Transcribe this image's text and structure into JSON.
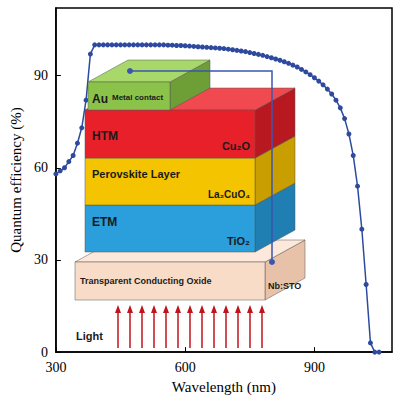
{
  "chart_data": {
    "type": "line",
    "x_label": "Wavelength (nm)",
    "y_label": "Quantum efficiency (%)",
    "x": [
      300,
      310,
      320,
      330,
      340,
      350,
      360,
      370,
      380,
      390,
      400,
      410,
      420,
      430,
      440,
      450,
      460,
      470,
      480,
      490,
      500,
      510,
      520,
      530,
      540,
      550,
      560,
      570,
      580,
      590,
      600,
      610,
      620,
      630,
      640,
      650,
      660,
      670,
      680,
      690,
      700,
      710,
      720,
      730,
      740,
      750,
      760,
      770,
      780,
      790,
      800,
      810,
      820,
      830,
      840,
      850,
      860,
      870,
      880,
      890,
      900,
      910,
      920,
      930,
      940,
      950,
      960,
      970,
      980,
      990,
      1000,
      1010,
      1020,
      1030,
      1040,
      1050
    ],
    "values": [
      58,
      59,
      60,
      62,
      64,
      68,
      73,
      82,
      97,
      100,
      100,
      100,
      100,
      100,
      100,
      100,
      100,
      100,
      100,
      100,
      100,
      100,
      100,
      100,
      100,
      100,
      99.9,
      99.9,
      99.8,
      99.8,
      99.7,
      99.6,
      99.5,
      99.4,
      99.3,
      99.2,
      99.1,
      99,
      98.9,
      98.8,
      98.6,
      98.4,
      98.2,
      98,
      97.8,
      97.5,
      97.2,
      96.9,
      96.6,
      96.2,
      95.8,
      95.4,
      95,
      94.5,
      94,
      93.4,
      92.8,
      92,
      91.2,
      90.3,
      89.3,
      88.2,
      87,
      85.6,
      84,
      82,
      79.5,
      76,
      71,
      64,
      54,
      40,
      22,
      3,
      0,
      0
    ],
    "color": "#2e4a9e",
    "marker": "circle",
    "xlim": [
      300,
      1080
    ],
    "xticks": [
      300,
      600,
      900
    ],
    "ylim": [
      0,
      112
    ],
    "yticks": [
      0,
      30,
      60,
      90
    ],
    "grid": false,
    "annotations": {
      "metal": "Au",
      "metal_note": "Metal contact",
      "htm": "HTM",
      "htm_material": "Cu₂O",
      "absorber": "Perovskite Layer",
      "absorber_material": "La₂CuO₄",
      "etm": "ETM",
      "etm_material": "TiO₂",
      "tco": "Transparent Conducting Oxide",
      "tco_material": "Nb:STO",
      "light": "Light"
    }
  }
}
